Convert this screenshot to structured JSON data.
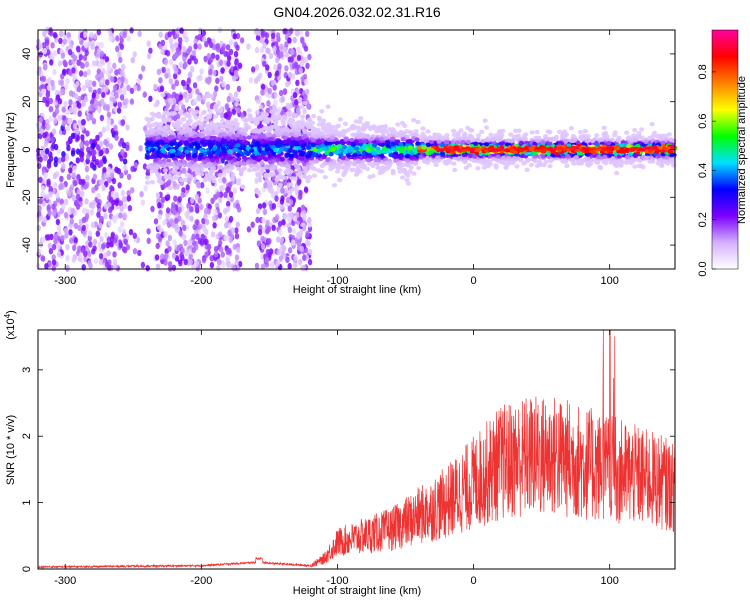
{
  "title": "GN04.2026.032.02.31.R16",
  "chart_data": [
    {
      "type": "heatmap",
      "xlabel": "Height of straight line (km)",
      "ylabel": "Frequency (Hz)",
      "xlim": [
        -320,
        148
      ],
      "ylim": [
        -50,
        50
      ],
      "x_ticks": [
        -300,
        -200,
        -100,
        0,
        100
      ],
      "y_ticks": [
        -40,
        -20,
        0,
        20,
        40
      ],
      "colorbar": {
        "label": "Normalized spectral amplitude",
        "range": [
          0,
          0.97
        ],
        "ticks": [
          0.0,
          0.2,
          0.4,
          0.6,
          0.8
        ],
        "colors": [
          "#ffffff",
          "#d4b0ff",
          "#7a00ff",
          "#0000ff",
          "#00e0ff",
          "#00ff00",
          "#ffff00",
          "#ff8000",
          "#ff0000",
          "#ff00a0"
        ]
      },
      "description_regions": [
        {
          "x_range": [
            -320,
            -120
          ],
          "freq_spread": 50,
          "amplitude": 0.15
        },
        {
          "x_range": [
            -120,
            148
          ],
          "freq_center": 0,
          "freq_spread": 8,
          "amplitude": 0.6
        }
      ]
    },
    {
      "type": "line",
      "xlabel": "Height of straight line (km)",
      "ylabel": "SNR (10 * v/v)",
      "y_multiplier": "(x10",
      "y_multiplier_exp": "4",
      "y_multiplier_close": ")",
      "xlim": [
        -320,
        148
      ],
      "ylim": [
        0,
        3.6
      ],
      "x_ticks": [
        -300,
        -200,
        -100,
        0,
        100
      ],
      "y_ticks": [
        0,
        1,
        2,
        3
      ],
      "color": "#ee3333",
      "envelope": {
        "x": [
          -320,
          -200,
          -160,
          -120,
          -110,
          -100,
          -80,
          -60,
          -40,
          -20,
          0,
          20,
          40,
          60,
          80,
          100,
          120,
          140,
          148
        ],
        "y": [
          0.03,
          0.05,
          0.1,
          0.05,
          0.15,
          0.4,
          0.5,
          0.6,
          0.8,
          1.0,
          1.3,
          1.6,
          1.7,
          1.7,
          1.6,
          1.5,
          1.4,
          1.3,
          1.2
        ]
      }
    }
  ]
}
